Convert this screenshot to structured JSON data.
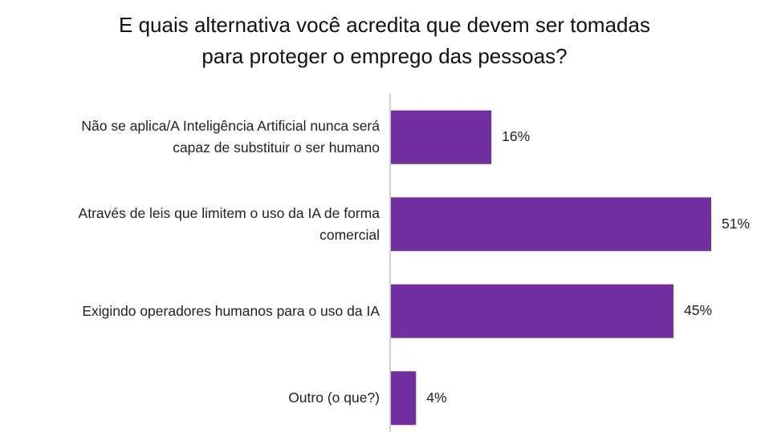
{
  "chart_data": {
    "type": "bar",
    "orientation": "horizontal",
    "title_lines": [
      "E quais alternativa você acredita que devem ser tomadas",
      "para proteger o emprego das pessoas?"
    ],
    "categories": [
      [
        "Não se aplica/A Inteligência Artificial nunca será",
        "capaz de substituir o ser humano"
      ],
      [
        "Através de leis que limitem o uso da IA de forma",
        "comercial"
      ],
      [
        "Exigindo operadores humanos para o uso da IA"
      ],
      [
        "Outro (o que?)"
      ]
    ],
    "values": [
      16,
      51,
      45,
      4
    ],
    "value_labels": [
      "16%",
      "51%",
      "45%",
      "4%"
    ],
    "unit": "%",
    "xlim": [
      0,
      51
    ],
    "grid": false,
    "legend": "none",
    "bar_color": "#7030A0"
  }
}
